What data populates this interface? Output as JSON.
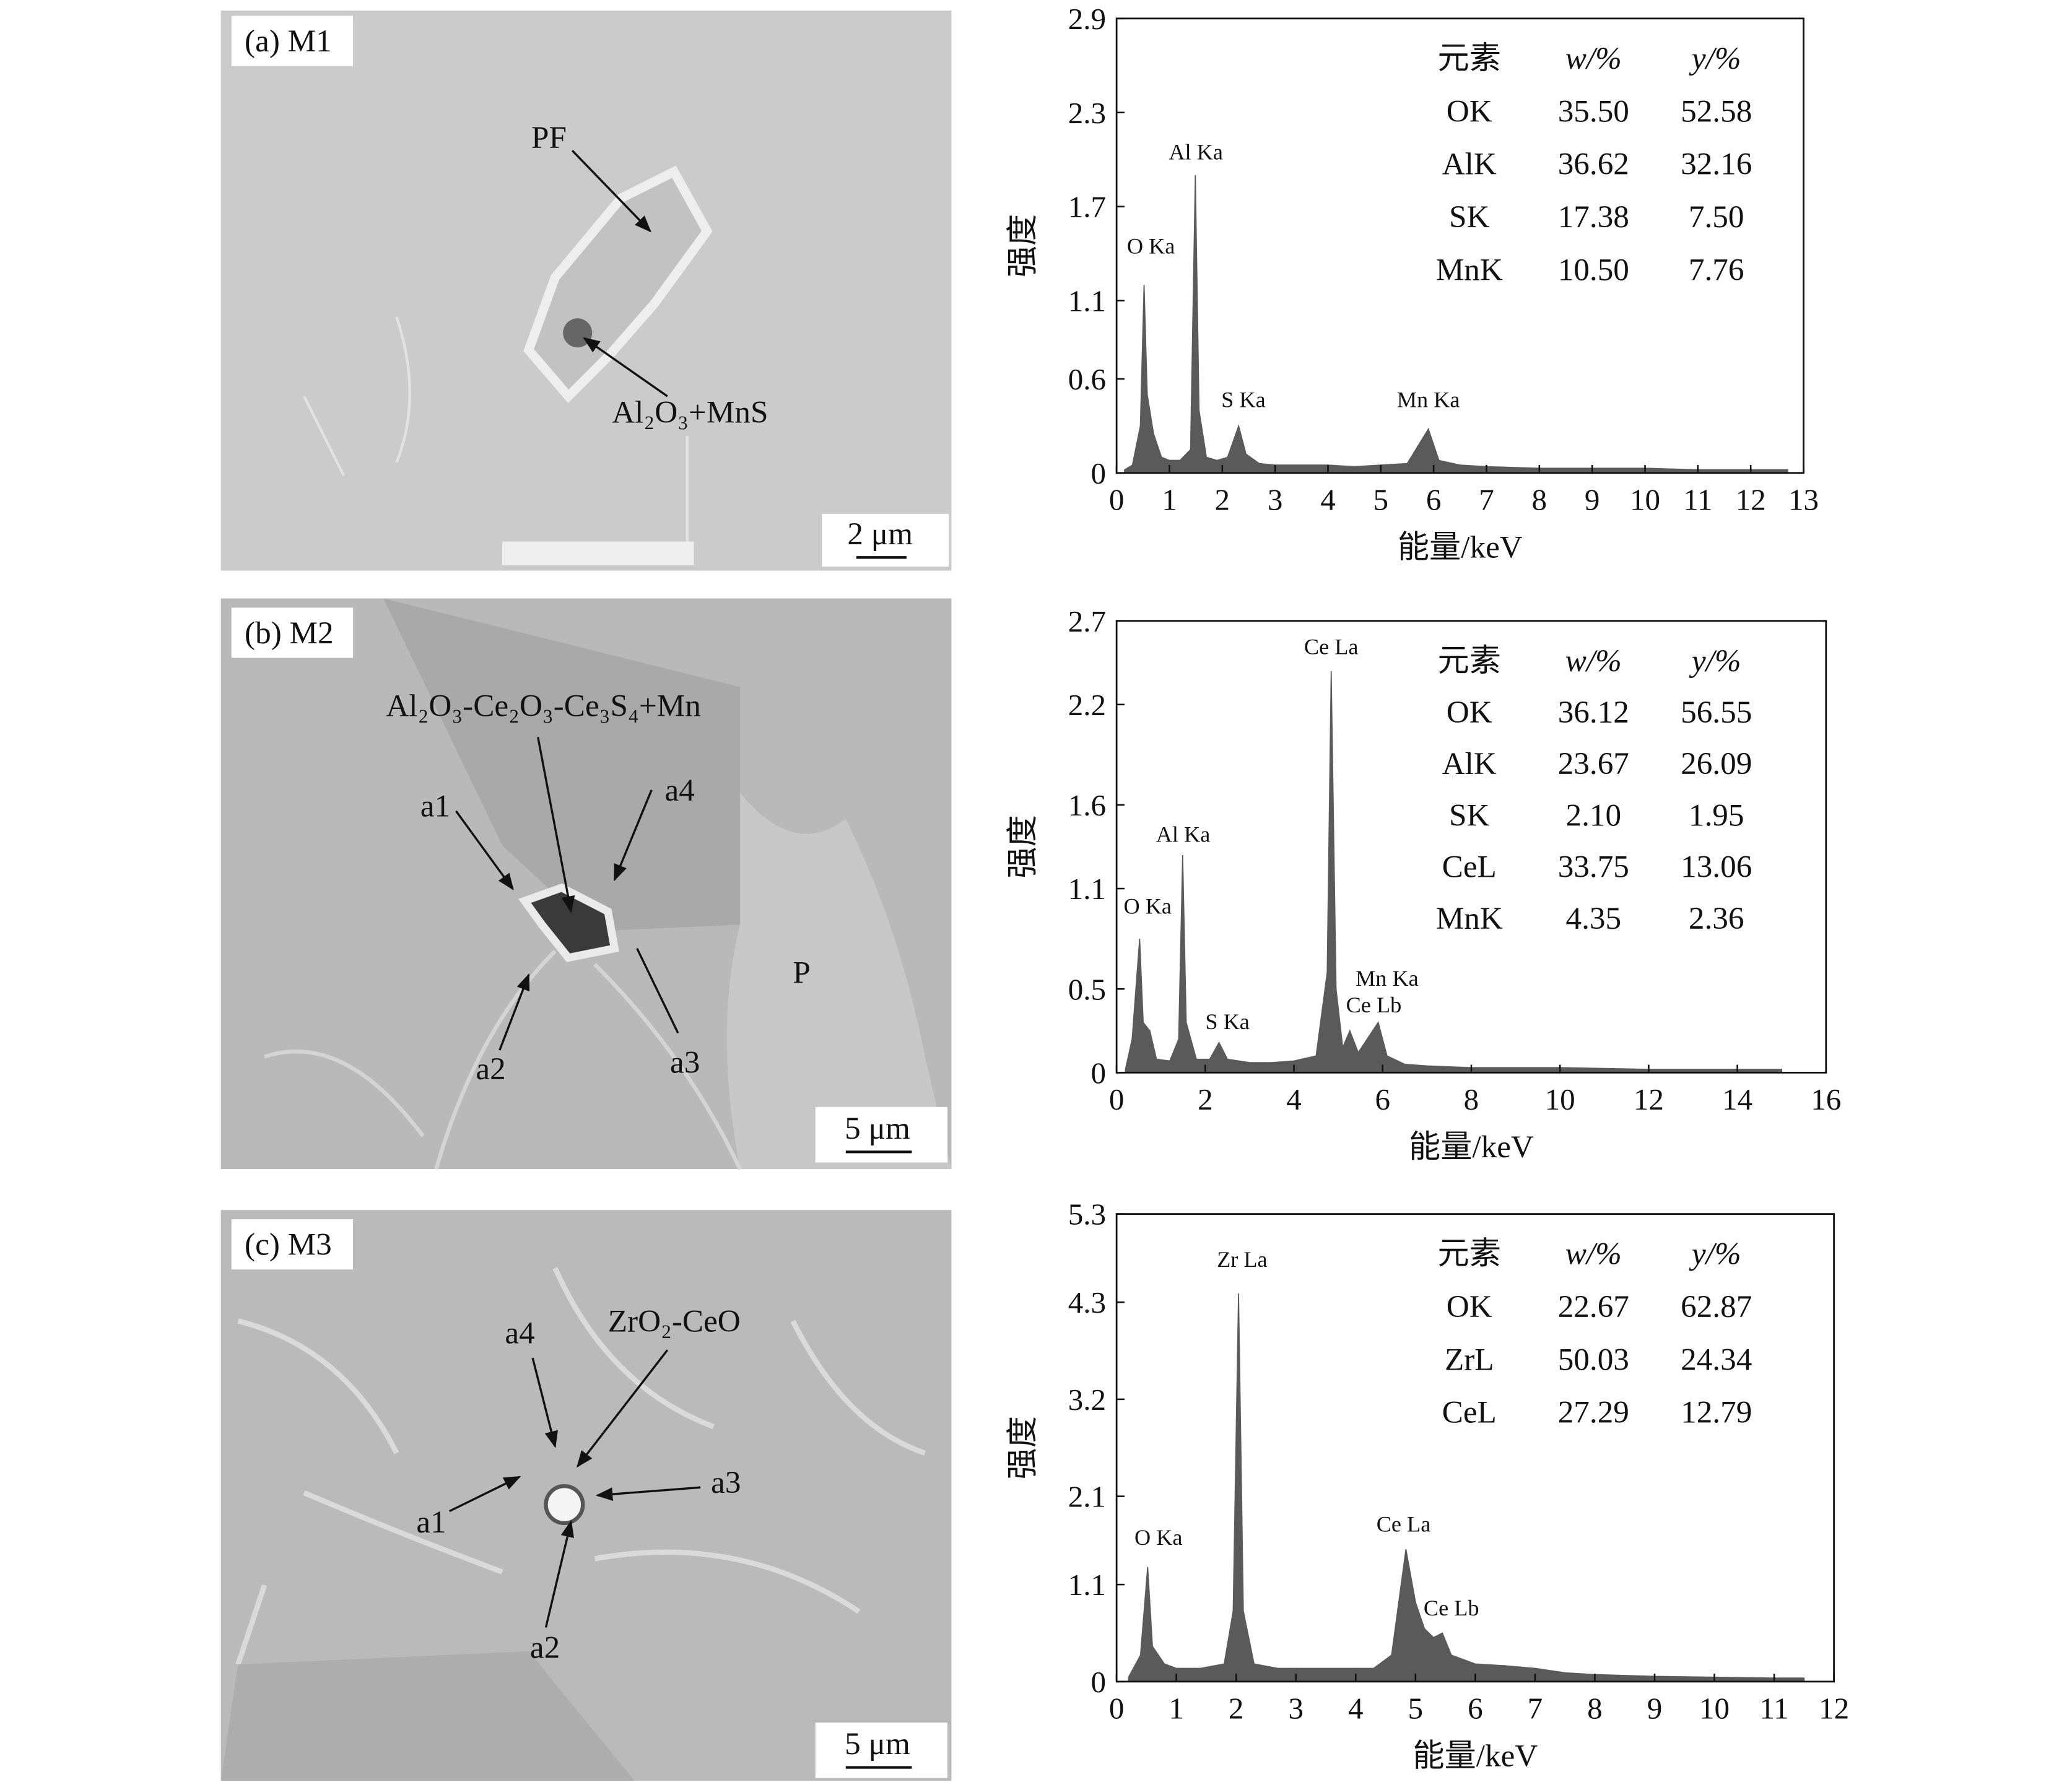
{
  "images": [
    {
      "label": "(a) M1",
      "scale_bar": "2 μm",
      "annotations": [
        "PF",
        "Al₂O₃+MnS"
      ]
    },
    {
      "label": "(b) M2",
      "scale_bar": "5 μm",
      "annotations": [
        "Al₂O₃-Ce₂O₃-Ce₃S₄+Mn",
        "a1",
        "a4",
        "a2",
        "a3",
        "P"
      ]
    },
    {
      "label": "(c) M3",
      "scale_bar": "5 μm",
      "annotations": [
        "ZrO₂-CeO",
        "a4",
        "a1",
        "a3",
        "a2"
      ]
    }
  ],
  "chart_data": [
    {
      "type": "area",
      "xlabel": "能量/keV",
      "ylabel": "强度",
      "color": "#5a5a5a",
      "xlim": [
        0,
        13
      ],
      "xticks": [
        0,
        1,
        2,
        3,
        4,
        5,
        6,
        7,
        8,
        9,
        10,
        11,
        12,
        13
      ],
      "ylim": [
        0,
        2.9
      ],
      "yticks": [
        0,
        0.6,
        1.1,
        1.7,
        2.3,
        2.9
      ],
      "x": [
        0.15,
        0.3,
        0.45,
        0.52,
        0.58,
        0.7,
        0.85,
        1.0,
        1.2,
        1.4,
        1.49,
        1.56,
        1.7,
        1.9,
        2.1,
        2.31,
        2.45,
        2.7,
        3.0,
        3.5,
        4.0,
        4.5,
        5.0,
        5.5,
        5.9,
        6.1,
        6.5,
        7,
        8,
        9,
        10,
        11,
        12,
        12.7
      ],
      "values": [
        0.02,
        0.05,
        0.3,
        1.2,
        0.5,
        0.25,
        0.1,
        0.08,
        0.08,
        0.15,
        1.9,
        0.4,
        0.1,
        0.08,
        0.1,
        0.3,
        0.12,
        0.06,
        0.05,
        0.05,
        0.05,
        0.04,
        0.05,
        0.06,
        0.28,
        0.08,
        0.05,
        0.04,
        0.03,
        0.03,
        0.03,
        0.02,
        0.02,
        0.02
      ],
      "annotations": [
        {
          "text": "O Ka",
          "x": 0.65,
          "y": 1.4
        },
        {
          "text": "Al Ka",
          "x": 1.5,
          "y": 2.0
        },
        {
          "text": "S Ka",
          "x": 2.4,
          "y": 0.42
        },
        {
          "text": "Mn Ka",
          "x": 5.9,
          "y": 0.42
        }
      ],
      "table": {
        "columns": [
          "元素",
          "w/%",
          "y/%"
        ],
        "rows": [
          [
            "OK",
            "35.50",
            "52.58"
          ],
          [
            "AlK",
            "36.62",
            "32.16"
          ],
          [
            "SK",
            "17.38",
            "7.50"
          ],
          [
            "MnK",
            "10.50",
            "7.76"
          ]
        ]
      }
    },
    {
      "type": "area",
      "xlabel": "能量/keV",
      "ylabel": "强度",
      "color": "#5a5a5a",
      "xlim": [
        0,
        16
      ],
      "xticks": [
        0,
        2,
        4,
        6,
        8,
        10,
        12,
        14,
        16
      ],
      "ylim": [
        0,
        2.7
      ],
      "yticks": [
        0,
        0.5,
        1.1,
        1.6,
        2.2,
        2.7
      ],
      "x": [
        0.2,
        0.35,
        0.52,
        0.6,
        0.75,
        0.9,
        1.2,
        1.4,
        1.49,
        1.57,
        1.8,
        2.1,
        2.31,
        2.5,
        3,
        3.5,
        4,
        4.5,
        4.75,
        4.84,
        4.95,
        5.1,
        5.26,
        5.45,
        5.9,
        6.1,
        6.5,
        7,
        8,
        10,
        12,
        15
      ],
      "values": [
        0.02,
        0.2,
        0.8,
        0.3,
        0.25,
        0.08,
        0.07,
        0.2,
        1.3,
        0.3,
        0.08,
        0.08,
        0.18,
        0.08,
        0.06,
        0.06,
        0.07,
        0.1,
        0.6,
        2.4,
        0.5,
        0.15,
        0.25,
        0.12,
        0.3,
        0.1,
        0.05,
        0.04,
        0.03,
        0.03,
        0.02,
        0.02
      ],
      "annotations": [
        {
          "text": "O Ka",
          "x": 0.7,
          "y": 0.95
        },
        {
          "text": "Al Ka",
          "x": 1.5,
          "y": 1.38
        },
        {
          "text": "S Ka",
          "x": 2.5,
          "y": 0.26
        },
        {
          "text": "Ce La",
          "x": 4.84,
          "y": 2.5
        },
        {
          "text": "Mn Ka",
          "x": 6.1,
          "y": 0.52
        },
        {
          "text": "Ce Lb",
          "x": 5.8,
          "y": 0.36
        }
      ],
      "table": {
        "columns": [
          "元素",
          "w/%",
          "y/%"
        ],
        "rows": [
          [
            "OK",
            "36.12",
            "56.55"
          ],
          [
            "AlK",
            "23.67",
            "26.09"
          ],
          [
            "SK",
            "2.10",
            "1.95"
          ],
          [
            "CeL",
            "33.75",
            "13.06"
          ],
          [
            "MnK",
            "4.35",
            "2.36"
          ]
        ]
      }
    },
    {
      "type": "area",
      "xlabel": "能量/keV",
      "ylabel": "强度",
      "color": "#5a5a5a",
      "xlim": [
        0,
        12
      ],
      "xticks": [
        0,
        1,
        2,
        3,
        4,
        5,
        6,
        7,
        8,
        9,
        10,
        11,
        12
      ],
      "ylim": [
        0,
        5.3
      ],
      "yticks": [
        0,
        1.1,
        2.1,
        3.2,
        4.3,
        5.3
      ],
      "x": [
        0.2,
        0.4,
        0.52,
        0.6,
        0.8,
        1.0,
        1.4,
        1.8,
        1.95,
        2.04,
        2.12,
        2.3,
        2.7,
        3.2,
        3.8,
        4.3,
        4.6,
        4.84,
        5.0,
        5.15,
        5.3,
        5.45,
        5.6,
        6,
        6.5,
        7,
        7.5,
        8,
        9,
        10,
        11,
        11.5
      ],
      "values": [
        0.05,
        0.3,
        1.3,
        0.4,
        0.2,
        0.15,
        0.15,
        0.2,
        0.8,
        4.4,
        0.8,
        0.2,
        0.15,
        0.15,
        0.15,
        0.15,
        0.3,
        1.5,
        0.9,
        0.6,
        0.5,
        0.55,
        0.3,
        0.2,
        0.18,
        0.15,
        0.1,
        0.08,
        0.06,
        0.05,
        0.04,
        0.04
      ],
      "annotations": [
        {
          "text": "O Ka",
          "x": 0.7,
          "y": 1.55
        },
        {
          "text": "Zr La",
          "x": 2.1,
          "y": 4.7
        },
        {
          "text": "Ce La",
          "x": 4.8,
          "y": 1.7
        },
        {
          "text": "Ce Lb",
          "x": 5.6,
          "y": 0.75
        }
      ],
      "table": {
        "columns": [
          "元素",
          "w/%",
          "y/%"
        ],
        "rows": [
          [
            "OK",
            "22.67",
            "62.87"
          ],
          [
            "ZrL",
            "50.03",
            "24.34"
          ],
          [
            "CeL",
            "27.29",
            "12.79"
          ]
        ]
      }
    }
  ]
}
